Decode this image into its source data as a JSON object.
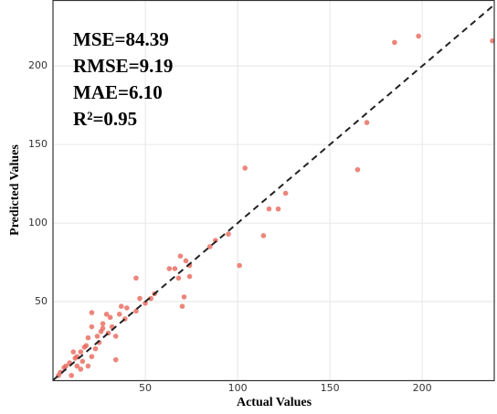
{
  "chart_data": {
    "type": "scatter",
    "xlabel": "Actual Values",
    "ylabel": "Predicted Values",
    "annotations": [
      "MSE=84.39",
      "RMSE=9.19",
      "MAE=6.10",
      "R²=0.95"
    ],
    "color": "#e8665a",
    "grid": true,
    "xlim": [
      0,
      239
    ],
    "ylim": [
      0,
      242
    ],
    "xticks": [
      50,
      100,
      150,
      200
    ],
    "yticks": [
      50,
      100,
      150,
      200
    ],
    "x": [
      238,
      198,
      185,
      170,
      165,
      126,
      122,
      117,
      114,
      104,
      101,
      95,
      88,
      85,
      74,
      74,
      72,
      69,
      71,
      70,
      68,
      66,
      63,
      55,
      53,
      50,
      45,
      47,
      45,
      40,
      37,
      36,
      39,
      34,
      32,
      34,
      29,
      27,
      26,
      24,
      21,
      21,
      19,
      18,
      17,
      15,
      13,
      12,
      11,
      9,
      7,
      6,
      4,
      3,
      10,
      13,
      16,
      23,
      25,
      27,
      30,
      31,
      19,
      15,
      21
    ],
    "y": [
      216,
      219,
      215,
      164,
      134,
      119,
      109,
      109,
      92,
      135,
      73,
      93,
      89,
      85,
      73,
      66,
      76,
      79,
      53,
      47,
      65,
      71,
      71,
      55,
      52,
      49,
      65,
      52,
      44,
      46,
      47,
      42,
      39,
      28,
      34,
      13,
      42,
      36,
      31,
      28,
      43,
      34,
      27,
      22,
      21,
      18,
      15,
      14,
      18,
      11,
      9,
      8,
      5,
      3,
      3,
      9,
      12,
      20,
      24,
      33,
      30,
      40,
      9,
      7,
      15
    ]
  }
}
